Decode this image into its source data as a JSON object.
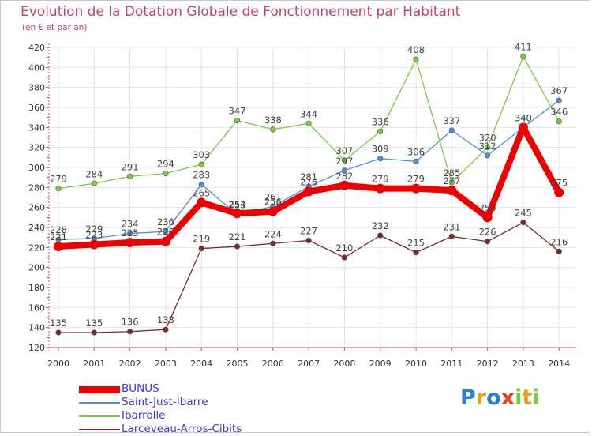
{
  "title": "Evolution de la Dotation Globale de Fonctionnement par Habitant",
  "subtitle": "(en € et par an)",
  "chart_data": {
    "type": "line",
    "x": [
      "2000",
      "2001",
      "2002",
      "2003",
      "2004",
      "2005",
      "2006",
      "2007",
      "2008",
      "2009",
      "2010",
      "2011",
      "2012",
      "2013",
      "2014"
    ],
    "ylim": [
      120,
      420
    ],
    "yticks": [
      120,
      140,
      160,
      180,
      200,
      220,
      240,
      260,
      280,
      300,
      320,
      340,
      360,
      380,
      400,
      420
    ],
    "grid": true,
    "legend_position": "bottom-left",
    "series": [
      {
        "name": "BUNUS",
        "color": "#ee0000",
        "values": [
          221,
          223,
          225,
          226,
          265,
          254,
          256,
          276,
          282,
          279,
          279,
          277,
          250,
          340,
          275
        ]
      },
      {
        "name": "Saint-Just-Ibarre",
        "color": "#4a90d9",
        "values": [
          228,
          229,
          234,
          236,
          283,
          253,
          261,
          281,
          297,
          309,
          306,
          337,
          312,
          340,
          367
        ]
      },
      {
        "name": "Ibarrolle",
        "color": "#7acc3c",
        "values": [
          279,
          284,
          291,
          294,
          303,
          347,
          338,
          344,
          307,
          336,
          408,
          285,
          320,
          411,
          346
        ]
      },
      {
        "name": "Larceveau-Arros-Cibits",
        "color": "#7a2a2a",
        "values": [
          135,
          135,
          136,
          138,
          219,
          221,
          224,
          227,
          210,
          232,
          215,
          231,
          226,
          245,
          216
        ]
      }
    ]
  },
  "logo": {
    "text": "Proxiti",
    "letters": [
      {
        "ch": "P",
        "color": "#2a7fd4"
      },
      {
        "ch": "r",
        "color": "#e8a020"
      },
      {
        "ch": "o",
        "color": "#2a7fd4"
      },
      {
        "ch": "x",
        "color": "#e84020"
      },
      {
        "ch": "i",
        "color": "#7acc3c"
      },
      {
        "ch": "t",
        "color": "#e8a020"
      },
      {
        "ch": "i",
        "color": "#7acc3c"
      }
    ]
  }
}
